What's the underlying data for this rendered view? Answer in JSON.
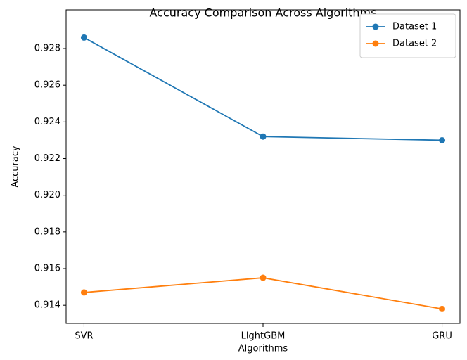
{
  "chart_data": {
    "type": "line",
    "title": "Accuracy Comparison Across Algorithms",
    "xlabel": "Algorithms",
    "ylabel": "Accuracy",
    "categories": [
      "SVR",
      "LightGBM",
      "GRU"
    ],
    "series": [
      {
        "name": "Dataset 1",
        "color": "#1f77b4",
        "values": [
          0.9286,
          0.9232,
          0.923
        ]
      },
      {
        "name": "Dataset 2",
        "color": "#ff7f0e",
        "values": [
          0.9147,
          0.9155,
          0.9138
        ]
      }
    ],
    "ylim": [
      0.91301,
      0.93011
    ],
    "yticks": [
      0.914,
      0.916,
      0.918,
      {
        "value": 0.92,
        "label": "0.920"
      },
      0.922,
      0.924,
      0.926,
      0.928
    ],
    "legend": "upper right",
    "grid": false
  }
}
